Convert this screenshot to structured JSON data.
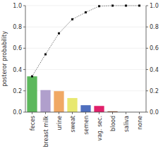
{
  "chart_data": {
    "type": "bar",
    "categories": [
      "feces",
      "breast milk",
      "urine",
      "sweat",
      "semen",
      "vag. sec.",
      "blood",
      "saliva",
      "none"
    ],
    "series": [
      {
        "type": "bar",
        "colors": [
          "#5cb85c",
          "#b09fcc",
          "#f0a864",
          "#e8e870",
          "#4f6fbf",
          "#e0206a",
          "#a06040",
          "#ddddcc",
          "#ddddcc"
        ],
        "values": [
          0.336,
          0.207,
          0.197,
          0.132,
          0.065,
          0.058,
          0.008,
          0.0,
          0.0
        ]
      },
      {
        "type": "line",
        "axis": "y2",
        "color": "#555555",
        "line_style": "dotted",
        "marker": "square",
        "colors": [
          "#111111",
          "#111111",
          "#111111",
          "#111111",
          "#111111",
          "#111111",
          "#111111",
          "#111111",
          "#111111"
        ],
        "values": [
          0.336,
          0.543,
          0.74,
          0.872,
          0.937,
          0.995,
          1.0,
          1.0,
          1.0
        ]
      }
    ],
    "y_label": "posteror probability",
    "ylim": [
      0.0,
      1.0
    ],
    "yticks": [
      {
        "value": 0.0,
        "label": "0.0"
      },
      0.2,
      0.4,
      0.6,
      0.8,
      {
        "value": 1.0,
        "label": "1.0"
      }
    ],
    "y2lim": [
      0.0,
      1.0
    ],
    "y2ticks": [
      {
        "value": 0.0,
        "label": "0.0"
      },
      0.2,
      0.4,
      0.6,
      0.8,
      {
        "value": 1.0,
        "label": "1.0"
      }
    ]
  }
}
